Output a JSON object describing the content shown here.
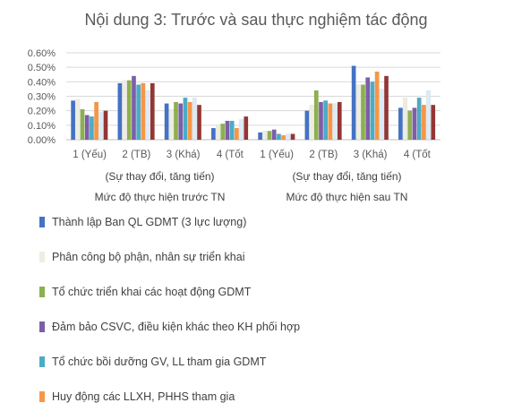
{
  "chart_data": {
    "type": "bar",
    "title": "Nội dung 3: Trước và sau thực nghiệm tác động",
    "y_ticks": [
      "0.00%",
      "0.10%",
      "0.20%",
      "0.30%",
      "0.40%",
      "0.50%",
      "0.60%"
    ],
    "ylim": [
      0,
      0.6
    ],
    "grid": true,
    "groups": [
      {
        "label": "Mức độ thực hiện trước TN",
        "sublabel": "(Sự thay đổi, tăng tiến)",
        "categories": [
          "1 (Yếu)",
          "2 (TB)",
          "3 (Khá)",
          "4 (Tốt"
        ]
      },
      {
        "label": "Mức độ thực hiện sau TN",
        "sublabel": "(Sự thay đổi, tăng tiến)",
        "categories": [
          "1 (Yếu)",
          "2 (TB)",
          "3 (Khá)",
          "4 (Tốt"
        ]
      }
    ],
    "series": [
      {
        "name": "Thành lập Ban QL GDMT (3 lực lượng)",
        "color": "#4472C4",
        "values": [
          0.27,
          0.39,
          0.25,
          0.08,
          0.05,
          0.2,
          0.51,
          0.22
        ]
      },
      {
        "name": "Phân công bộ phận, nhân sự triển khai",
        "color": "#EDEDE2",
        "values": [
          0.28,
          0.41,
          0.21,
          0.1,
          0.06,
          0.24,
          0.38,
          0.29
        ]
      },
      {
        "name": "Tổ chức triển khai các hoạt động GDMT",
        "color": "#8CB04E",
        "values": [
          0.21,
          0.41,
          0.26,
          0.11,
          0.06,
          0.34,
          0.38,
          0.2
        ]
      },
      {
        "name": "Đảm bảo CSVC, điều kiện khác theo KH phối hợp",
        "color": "#7D5EA8",
        "values": [
          0.17,
          0.44,
          0.25,
          0.13,
          0.07,
          0.26,
          0.43,
          0.22
        ]
      },
      {
        "name": "Tổ chức bồi dưỡng GV, LL tham gia GDMT",
        "color": "#4BACC6",
        "values": [
          0.16,
          0.38,
          0.29,
          0.13,
          0.04,
          0.27,
          0.4,
          0.29
        ]
      },
      {
        "name": "Huy động các LLXH, PHHS tham gia",
        "color": "#F79646",
        "values": [
          0.26,
          0.39,
          0.26,
          0.08,
          0.03,
          0.25,
          0.47,
          0.24
        ]
      },
      {
        "name": "",
        "color": "#DCEBF6",
        "values": [
          0.19,
          0.34,
          0.29,
          0.14,
          0.04,
          0.25,
          0.35,
          0.34
        ]
      },
      {
        "name": "",
        "color": "#943634",
        "values": [
          0.2,
          0.39,
          0.24,
          0.16,
          0.04,
          0.26,
          0.44,
          0.24
        ]
      }
    ]
  }
}
